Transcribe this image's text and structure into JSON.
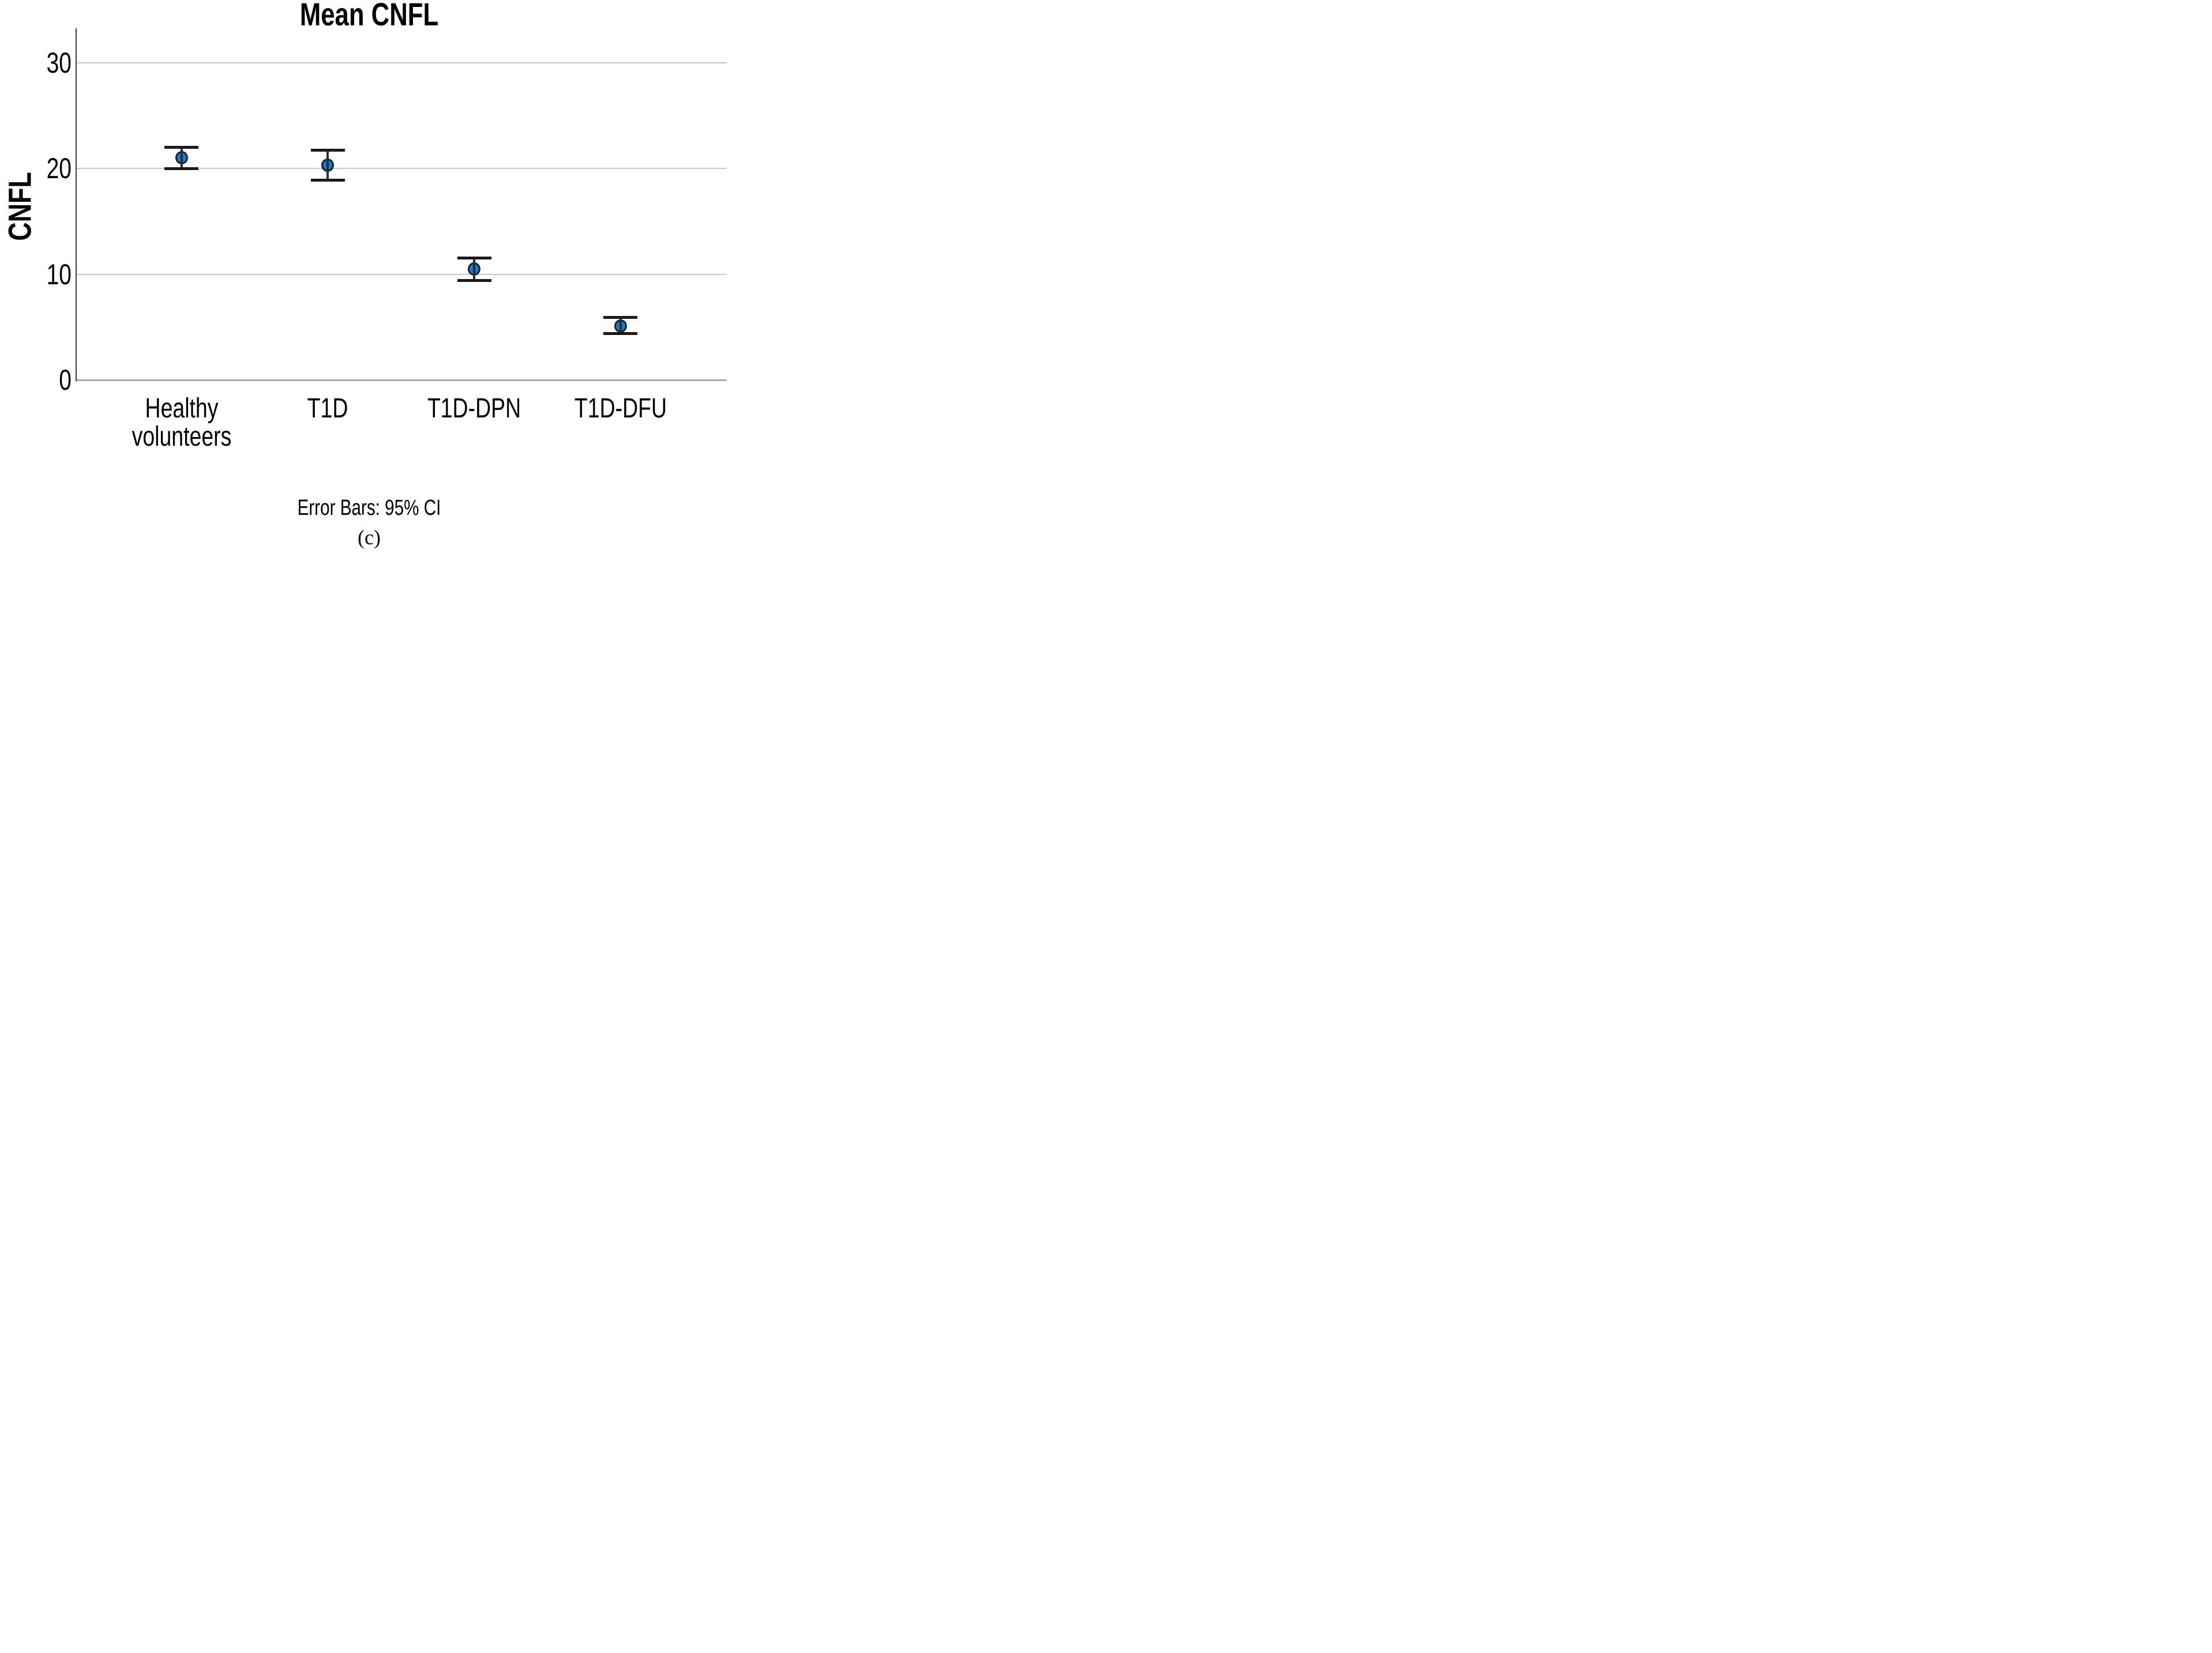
{
  "chart_data": {
    "type": "scatter",
    "title": "Mean CNFL",
    "ylabel": "CNFL",
    "xlabel": "",
    "categories": [
      "Healthy\nvolunteers",
      "T1D",
      "T1D-DPN",
      "T1D-DFU"
    ],
    "series": [
      {
        "name": "Mean CNFL",
        "means": [
          21.0,
          20.3,
          10.5,
          5.1
        ],
        "ci_low": [
          20.0,
          18.9,
          9.4,
          4.4
        ],
        "ci_high": [
          22.0,
          21.7,
          11.5,
          5.9
        ]
      }
    ],
    "error_bar_type": "95% CI",
    "footnote": "Error Bars: 95% CI",
    "yticks": [
      0,
      10,
      20,
      30
    ],
    "ylim": [
      0,
      33.3
    ],
    "grid": "horizontal-only",
    "legend": "none",
    "marker_color": "#1B7AC6",
    "marker_edge_color": "#0D2234",
    "gridline_color": "#C9C9C9",
    "baseline_color": "#A8A8A8",
    "axis_color": "#3E3E3E"
  },
  "caption": "(c)"
}
